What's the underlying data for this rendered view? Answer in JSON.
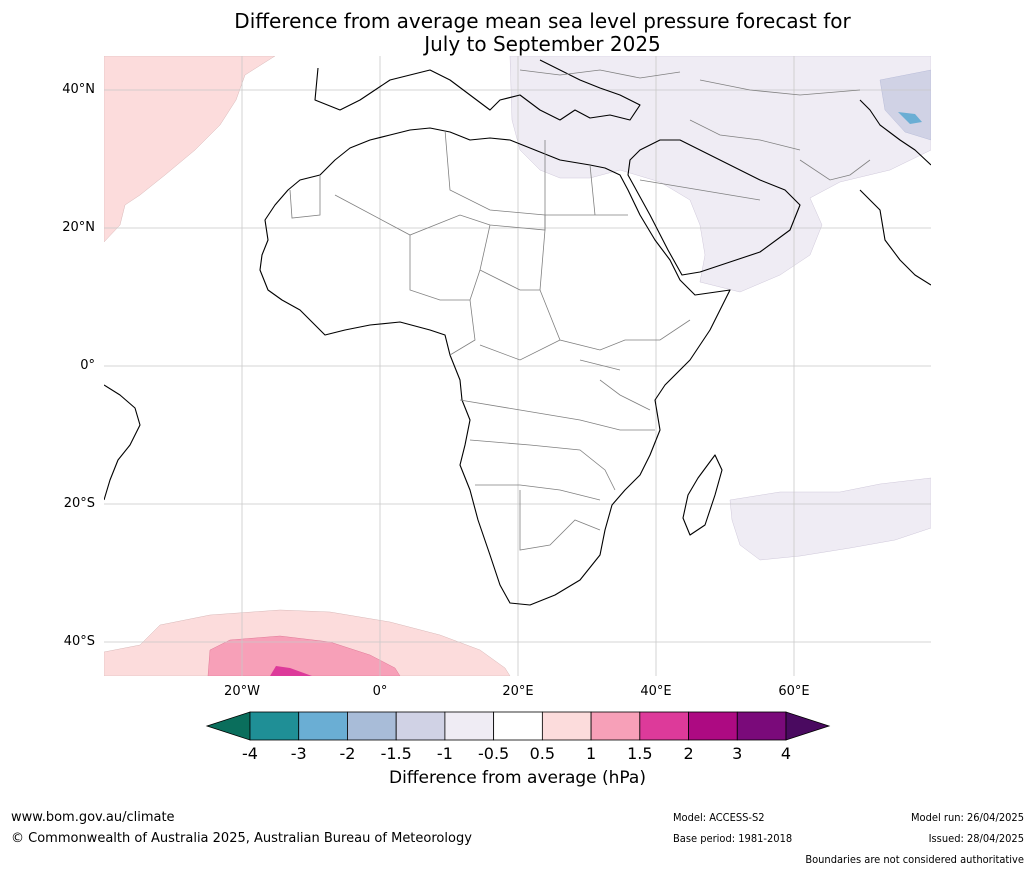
{
  "title": {
    "line1": "Difference from average mean sea level pressure forecast for",
    "line2": "July to September 2025"
  },
  "axes": {
    "lat_labels": [
      "40°N",
      "20°N",
      "0°",
      "20°S",
      "40°S"
    ],
    "lon_labels": [
      "20°W",
      "0°",
      "20°E",
      "40°E",
      "60°E"
    ]
  },
  "colorbar": {
    "title": "Difference from average (hPa)",
    "ticks": [
      "-4",
      "-3",
      "-2",
      "-1.5",
      "-1",
      "-0.5",
      "0.5",
      "1",
      "1.5",
      "2",
      "3",
      "4"
    ],
    "colors": [
      "#0a6e5c",
      "#1f8f96",
      "#6aaed4",
      "#a8bcd8",
      "#d0d2e5",
      "#efecf4",
      "#ffffff",
      "#fcdcdc",
      "#f7a0b8",
      "#dd3a9a",
      "#ad0a82",
      "#7a0a7a",
      "#4a0a60"
    ]
  },
  "footer": {
    "website": "www.bom.gov.au/climate",
    "copyright": "© Commonwealth of Australia 2025, Australian Bureau of Meteorology",
    "model": "Model: ACCESS-S2",
    "base_period": "Base period: 1981-2018",
    "model_run": "Model run: 26/04/2025",
    "issued": "Issued: 28/04/2025",
    "disclaimer": "Boundaries are not considered authoritative"
  }
}
